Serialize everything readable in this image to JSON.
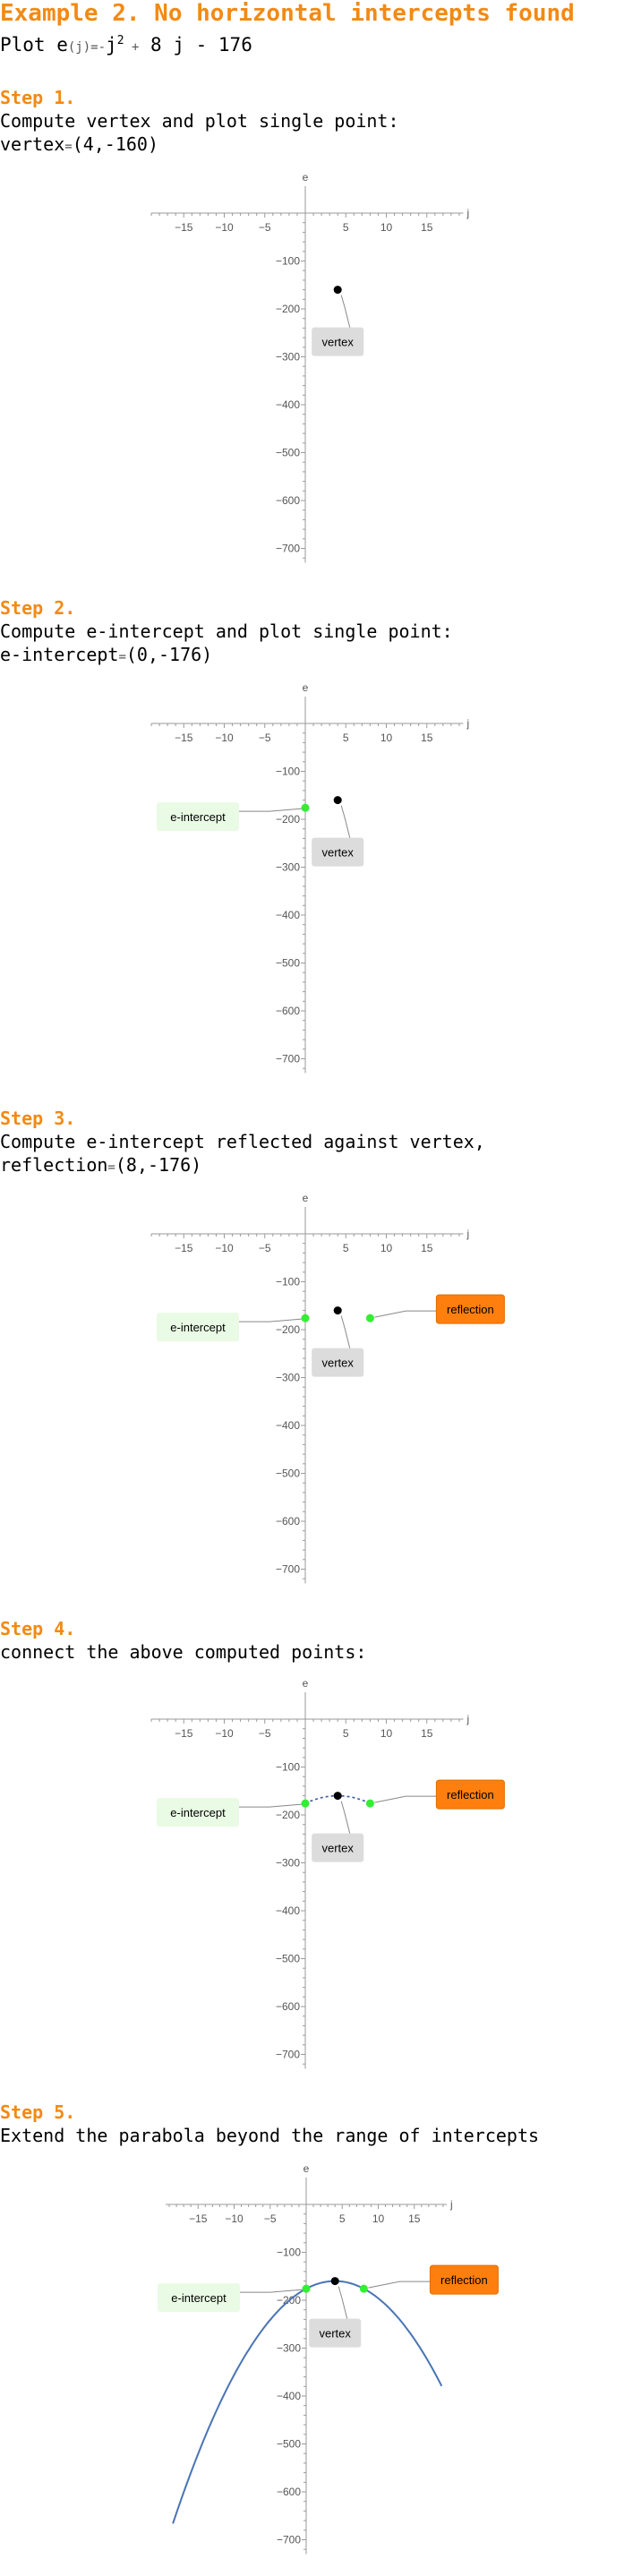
{
  "title": "Example 2. No horizontal intercepts found",
  "plot_line": {
    "prefix": "Plot e",
    "args": "(j)",
    "eq": "=",
    "neg": "-",
    "var1": "j",
    "exp": "2",
    "plus": "+",
    "rest": "8 j - 176"
  },
  "steps": [
    {
      "label": "Step 1.",
      "text1": "Compute vertex and plot single point:",
      "text2_name": "vertex",
      "text2_eq": "=",
      "text2_val": "(4,-160)"
    },
    {
      "label": "Step 2.",
      "text1": "Compute e-intercept and plot single point:",
      "text2_name": "e-intercept",
      "text2_eq": "=",
      "text2_val": "(0,-176)"
    },
    {
      "label": "Step 3.",
      "text1": "Compute e-intercept reflected against vertex,",
      "text2_name": "reflection",
      "text2_eq": "=",
      "text2_val": "(8,-176)"
    },
    {
      "label": "Step 4.",
      "text1": "connect the above computed points:",
      "text2_name": "",
      "text2_eq": "",
      "text2_val": ""
    },
    {
      "label": "Step 5.",
      "text1": "Extend the parabola beyond the range of intercepts",
      "text2_name": "",
      "text2_eq": "",
      "text2_val": ""
    }
  ],
  "colors": {
    "accent": "#f28a14",
    "curve": "#4a74b4",
    "point_black": "#000000",
    "point_green": "#33ee33",
    "vertex_label_bg": "#dcdcdc",
    "intercept_label_bg": "#e9fbe4",
    "reflection_label_bg": "#ff7f0e"
  },
  "chart_data": [
    {
      "type": "scatter",
      "step": 1,
      "xlabel": "j",
      "ylabel": "e",
      "x_ticks": [
        -15,
        -10,
        -5,
        5,
        10,
        15
      ],
      "y_ticks": [
        -100,
        -200,
        -300,
        -400,
        -500,
        -600,
        -700
      ],
      "xlim": [
        -19,
        19.5
      ],
      "ylim": [
        -730,
        0
      ],
      "points": [
        {
          "x": 4,
          "y": -160,
          "label": "vertex",
          "kind": "vertex"
        }
      ],
      "dashed": false,
      "curve": null
    },
    {
      "type": "scatter",
      "step": 2,
      "xlabel": "j",
      "ylabel": "e",
      "x_ticks": [
        -15,
        -10,
        -5,
        5,
        10,
        15
      ],
      "y_ticks": [
        -100,
        -200,
        -300,
        -400,
        -500,
        -600,
        -700
      ],
      "xlim": [
        -19,
        19.5
      ],
      "ylim": [
        -730,
        0
      ],
      "points": [
        {
          "x": 4,
          "y": -160,
          "label": "vertex",
          "kind": "vertex"
        },
        {
          "x": 0,
          "y": -176,
          "label": "e-intercept",
          "kind": "intercept"
        }
      ],
      "dashed": false,
      "curve": null
    },
    {
      "type": "scatter",
      "step": 3,
      "xlabel": "j",
      "ylabel": "e",
      "x_ticks": [
        -15,
        -10,
        -5,
        5,
        10,
        15
      ],
      "y_ticks": [
        -100,
        -200,
        -300,
        -400,
        -500,
        -600,
        -700
      ],
      "xlim": [
        -19,
        19.5
      ],
      "ylim": [
        -730,
        0
      ],
      "points": [
        {
          "x": 4,
          "y": -160,
          "label": "vertex",
          "kind": "vertex"
        },
        {
          "x": 0,
          "y": -176,
          "label": "e-intercept",
          "kind": "intercept"
        },
        {
          "x": 8,
          "y": -176,
          "label": "reflection",
          "kind": "reflection"
        }
      ],
      "dashed": false,
      "curve": null
    },
    {
      "type": "line",
      "step": 4,
      "xlabel": "j",
      "ylabel": "e",
      "x_ticks": [
        -15,
        -10,
        -5,
        5,
        10,
        15
      ],
      "y_ticks": [
        -100,
        -200,
        -300,
        -400,
        -500,
        -600,
        -700
      ],
      "xlim": [
        -19,
        19.5
      ],
      "ylim": [
        -730,
        0
      ],
      "points": [
        {
          "x": 4,
          "y": -160,
          "label": "vertex",
          "kind": "vertex"
        },
        {
          "x": 0,
          "y": -176,
          "label": "e-intercept",
          "kind": "intercept"
        },
        {
          "x": 8,
          "y": -176,
          "label": "reflection",
          "kind": "reflection"
        }
      ],
      "dashed": true,
      "curve": {
        "a": -1,
        "b": 8,
        "c": -176,
        "from": 0,
        "to": 8
      }
    },
    {
      "type": "line",
      "step": 5,
      "xlabel": "j",
      "ylabel": "e",
      "x_ticks": [
        -15,
        -10,
        -5,
        5,
        10,
        15
      ],
      "y_ticks": [
        -100,
        -200,
        -300,
        -400,
        -500,
        -600,
        -700
      ],
      "xlim": [
        -19.5,
        19.5
      ],
      "ylim": [
        -730,
        0
      ],
      "points": [
        {
          "x": 4,
          "y": -160,
          "label": "vertex",
          "kind": "vertex"
        },
        {
          "x": 0,
          "y": -176,
          "label": "e-intercept",
          "kind": "intercept"
        },
        {
          "x": 8,
          "y": -176,
          "label": "reflection",
          "kind": "reflection"
        }
      ],
      "dashed": false,
      "curve": {
        "a": -1,
        "b": 8,
        "c": -176,
        "from": -18.5,
        "to": 18.8
      }
    }
  ]
}
